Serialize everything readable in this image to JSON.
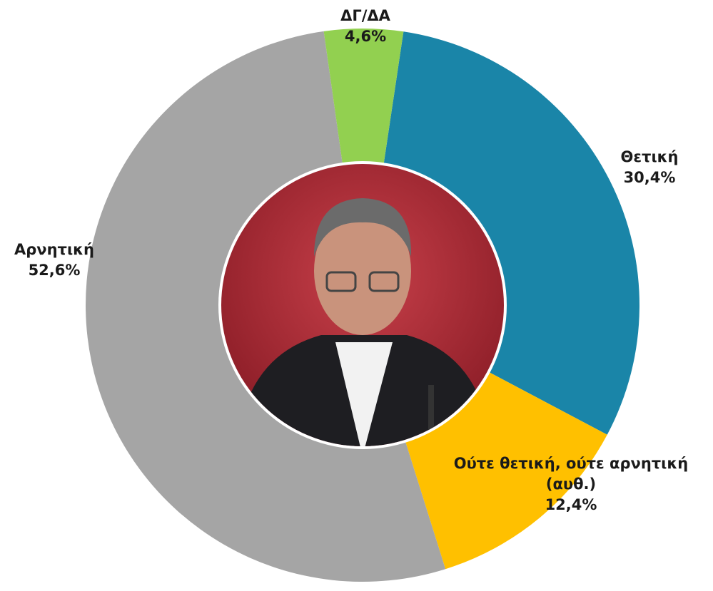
{
  "chart_data": {
    "type": "donut",
    "categories": [
      "Θετική",
      "Ούτε θετική, ούτε αρνητική (αυθ.)",
      "Αρνητική",
      "ΔΓ/ΔΑ"
    ],
    "values": [
      30.4,
      12.4,
      52.6,
      4.6
    ],
    "value_labels": [
      "30,4%",
      "12,4%",
      "52,6%",
      "4,6%"
    ],
    "colors": [
      "#1a85a8",
      "#ffc000",
      "#a5a5a5",
      "#92d050"
    ]
  }
}
